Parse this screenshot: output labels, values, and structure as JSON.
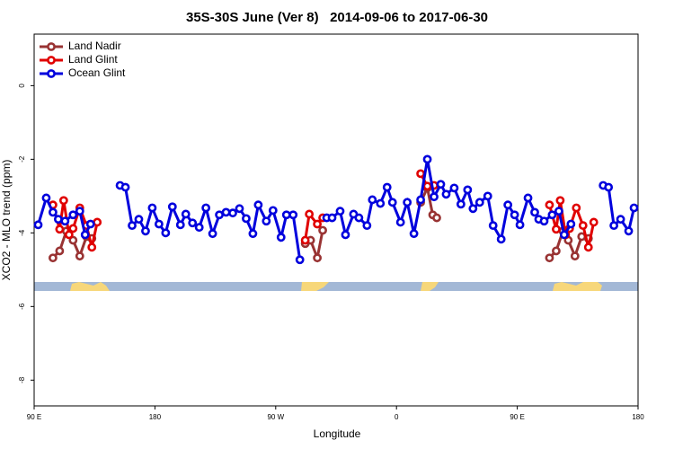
{
  "chart_data": {
    "type": "line",
    "title": "35S-30S June (Ver 8)   2014-09-06 to 2017-06-30",
    "x_label": "Longitude",
    "y_label": "XCO2 - MLO trend (ppm)",
    "xlim": [
      90,
      540
    ],
    "ylim": [
      -8.7,
      1.4
    ],
    "xticks": [
      {
        "value": 90,
        "label": "90 E"
      },
      {
        "value": 180,
        "label": "180"
      },
      {
        "value": 270,
        "label": "90 W"
      },
      {
        "value": 360,
        "label": "0"
      },
      {
        "value": 450,
        "label": "90 E"
      },
      {
        "value": 540,
        "label": "180"
      }
    ],
    "yticks": [
      -8,
      -6,
      -4,
      -2,
      0
    ],
    "legend": "top-left",
    "series": [
      {
        "name": "Land Nadir",
        "color": "#993333",
        "x": [
          104,
          109,
          114,
          119,
          124,
          129,
          133,
          null,
          292,
          296,
          301,
          305,
          null,
          378,
          383,
          387,
          390,
          null,
          474,
          479,
          484,
          488,
          493,
          498,
          503
        ],
        "values": [
          -4.68,
          -4.49,
          -3.95,
          -4.2,
          -4.63,
          -4.1,
          -4.15,
          null,
          -4.29,
          -4.2,
          -4.68,
          -3.93,
          null,
          -3.17,
          -2.78,
          -3.51,
          -3.59,
          null,
          -4.68,
          -4.49,
          -3.95,
          -4.2,
          -4.63,
          -4.1,
          -4.15
        ]
      },
      {
        "name": "Land Glint",
        "color": "#e00000",
        "x": [
          104,
          109,
          112,
          116,
          119,
          124,
          129,
          133,
          137,
          null,
          292,
          295,
          301,
          305,
          null,
          378,
          383,
          388,
          null,
          474,
          479,
          482,
          486,
          489,
          494,
          499,
          503,
          507
        ],
        "values": [
          -3.24,
          -3.9,
          -3.12,
          -4.05,
          -3.88,
          -3.32,
          -3.8,
          -4.39,
          -3.71,
          null,
          -4.2,
          -3.49,
          -3.76,
          -3.59,
          null,
          -2.39,
          -2.73,
          -2.71,
          null,
          -3.24,
          -3.9,
          -3.12,
          -4.05,
          -3.88,
          -3.32,
          -3.8,
          -4.39,
          -3.71
        ]
      },
      {
        "name": "Ocean Glint",
        "color": "#0000dd",
        "x": [
          93,
          99,
          104,
          108,
          113,
          119,
          124,
          128,
          132,
          null,
          154,
          158,
          163,
          168,
          173,
          178,
          183,
          188,
          193,
          199,
          203,
          208,
          213,
          218,
          223,
          228,
          233,
          238,
          243,
          248,
          253,
          257,
          263,
          268,
          274,
          278,
          283,
          288,
          null,
          308,
          312,
          318,
          322,
          328,
          332,
          338,
          342,
          348,
          353,
          357,
          363,
          368,
          373,
          378,
          383,
          388,
          393,
          397,
          403,
          408,
          413,
          417,
          422,
          428,
          432,
          438,
          443,
          448,
          452,
          458,
          463,
          466,
          470,
          476,
          481,
          485,
          490,
          null,
          514,
          518,
          522,
          527,
          533,
          537
        ],
        "values": [
          -3.78,
          -3.05,
          -3.44,
          -3.63,
          -3.68,
          -3.51,
          -3.41,
          -4.05,
          -3.76,
          null,
          -2.71,
          -2.76,
          -3.8,
          -3.63,
          -3.95,
          -3.32,
          -3.76,
          -4.0,
          -3.29,
          -3.78,
          -3.49,
          -3.73,
          -3.85,
          -3.32,
          -4.02,
          -3.51,
          -3.44,
          -3.46,
          -3.34,
          -3.61,
          -4.02,
          -3.24,
          -3.68,
          -3.39,
          -4.12,
          -3.51,
          -3.51,
          -4.73,
          null,
          -3.59,
          -3.59,
          -3.41,
          -4.05,
          -3.49,
          -3.59,
          -3.8,
          -3.1,
          -3.2,
          -2.76,
          -3.17,
          -3.71,
          -3.17,
          -4.02,
          -3.1,
          -2.0,
          -3.02,
          -2.68,
          -2.95,
          -2.78,
          -3.22,
          -2.83,
          -3.34,
          -3.17,
          -3.0,
          -3.8,
          -4.17,
          -3.24,
          -3.51,
          -3.78,
          -3.05,
          -3.44,
          -3.63,
          -3.68,
          -3.51,
          -3.41,
          -4.05,
          -3.76,
          null,
          -2.71,
          -2.76,
          -3.8,
          -3.63,
          -3.95,
          -3.32
        ]
      }
    ]
  }
}
